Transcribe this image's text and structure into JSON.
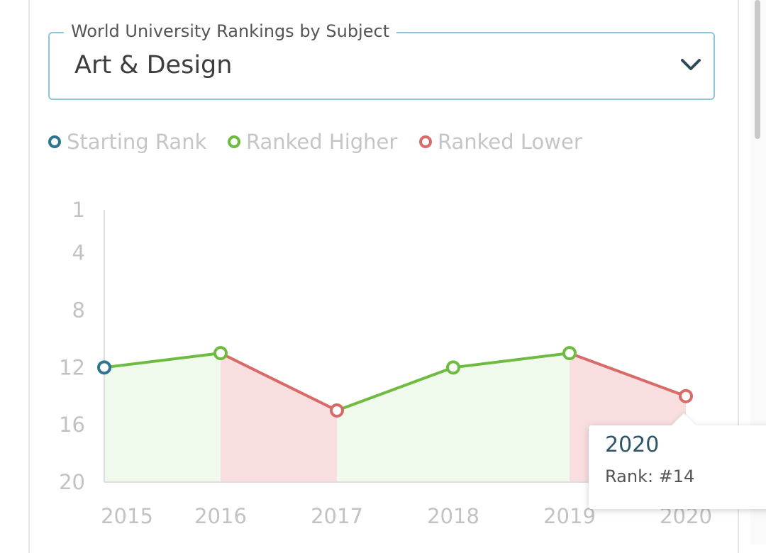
{
  "selector": {
    "legend": "World University Rankings by Subject",
    "value": "Art & Design",
    "icon": "chevron-down-icon"
  },
  "legend": [
    {
      "label": "Starting Rank",
      "color": "#2e7592"
    },
    {
      "label": "Ranked Higher",
      "color": "#6dbb3f"
    },
    {
      "label": "Ranked Lower",
      "color": "#d86a68"
    }
  ],
  "tooltip": {
    "year": "2020",
    "rank_text": "Rank: #14"
  },
  "chart_data": {
    "type": "line",
    "x": [
      "2015",
      "2016",
      "2017",
      "2018",
      "2019",
      "2020"
    ],
    "y": [
      12,
      11,
      15,
      12,
      11,
      14
    ],
    "y_ticks": [
      1,
      4,
      8,
      12,
      16,
      20
    ],
    "ylim": [
      1,
      20
    ],
    "y_inverted": true,
    "colors": {
      "start": "#2e7592",
      "higher": "#6dbb3f",
      "lower": "#d86a68",
      "higher_fill": "#f0faec",
      "lower_fill": "#f8dede",
      "axis": "#dddddd",
      "tick_text": "#c2c2c2"
    }
  }
}
